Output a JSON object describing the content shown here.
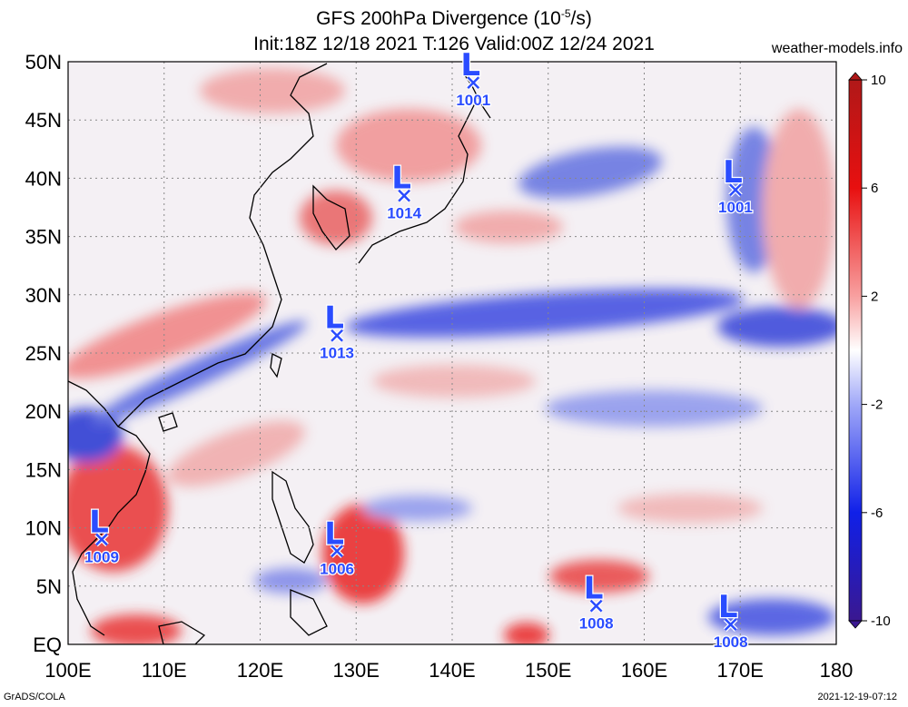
{
  "title": {
    "main": "GFS 200hPa Divergence (10",
    "exp": "-5",
    "unit_tail": "/s)",
    "sub": "Init:18Z 12/18 2021 T:126 Valid:00Z 12/24 2021"
  },
  "site": "weather-models.info",
  "credit": "GrADS/COLA",
  "stamp": "2021-12-19-07:12",
  "axes": {
    "lon_labels": [
      "100E",
      "110E",
      "120E",
      "130E",
      "140E",
      "150E",
      "160E",
      "170E",
      "180"
    ],
    "lat_labels": [
      "EQ",
      "5N",
      "10N",
      "15N",
      "20N",
      "25N",
      "30N",
      "35N",
      "40N",
      "45N",
      "50N"
    ]
  },
  "colorbar": {
    "labels": [
      "10",
      "6",
      "2",
      "-2",
      "-6",
      "-10"
    ],
    "values": [
      10,
      6,
      2,
      -2,
      -6,
      -10
    ]
  },
  "colors": {
    "div_pos": "#e81010",
    "div_neg": "#1020e8",
    "low_marker": "#2a4cff"
  },
  "lows": [
    {
      "symbol": "L",
      "pressure": "1001",
      "lon": 142.2,
      "lat": 48.2
    },
    {
      "symbol": "L",
      "pressure": "1014",
      "lon": 135.0,
      "lat": 38.5
    },
    {
      "symbol": "L",
      "pressure": "1001",
      "lon": 169.5,
      "lat": 39.0
    },
    {
      "symbol": "L",
      "pressure": "1013",
      "lon": 128.0,
      "lat": 26.5
    },
    {
      "symbol": "L",
      "pressure": "1009",
      "lon": 103.5,
      "lat": 9.0
    },
    {
      "symbol": "L",
      "pressure": "1006",
      "lon": 128.0,
      "lat": 8.0
    },
    {
      "symbol": "L",
      "pressure": "1008",
      "lon": 155.0,
      "lat": 3.3
    },
    {
      "symbol": "L",
      "pressure": "1008",
      "lon": 169.0,
      "lat": 1.7
    }
  ]
}
